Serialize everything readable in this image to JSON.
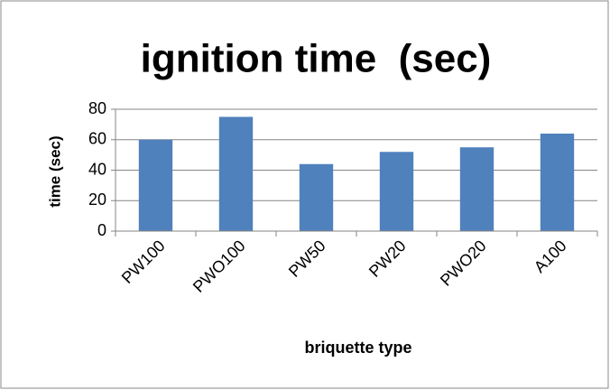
{
  "chart_data": {
    "type": "bar",
    "title": "ignition time  (sec)",
    "x_label": "briquette type",
    "y_label": "time (sec)",
    "categories": [
      "PW100",
      "PWO100",
      "PW50",
      "PW20",
      "PWO20",
      "A100"
    ],
    "values": [
      60,
      75,
      44,
      52,
      55,
      64
    ],
    "color": "#4f81bd",
    "ylim": [
      0,
      80
    ],
    "yticks": [
      0,
      20,
      40,
      60,
      80
    ],
    "grid": true
  }
}
